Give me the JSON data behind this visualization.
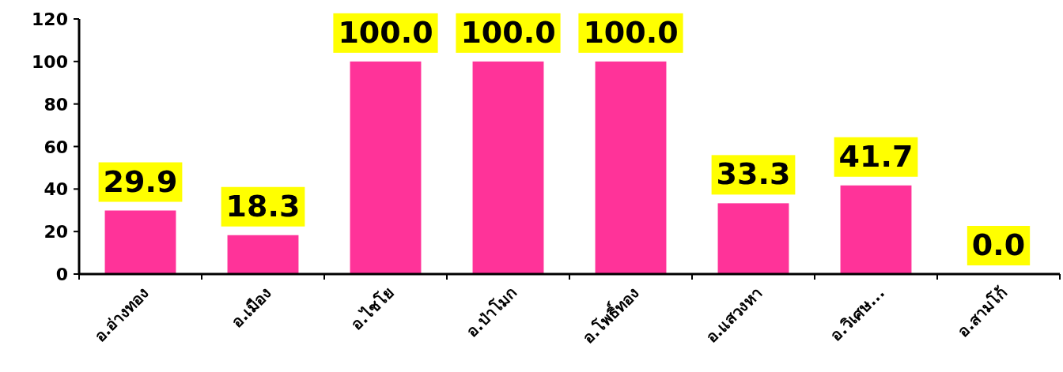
{
  "chart_data": {
    "type": "bar",
    "categories": [
      "อ.อ่างทอง",
      "อ.เมือง",
      "อ.ไชโย",
      "อ.ป่าโมก",
      "อ.โพธิ์ทอง",
      "อ.แสวงหา",
      "อ.วิเศษ...",
      "อ.สามโก้"
    ],
    "values": [
      29.9,
      18.3,
      100.0,
      100.0,
      100.0,
      33.3,
      41.7,
      0.0
    ],
    "color": "#ff3399",
    "ylim": [
      0,
      120
    ],
    "yticks": [
      0,
      20,
      40,
      60,
      80,
      100,
      120
    ],
    "value_labels": [
      "29.9",
      "18.3",
      "100.0",
      "100.0",
      "100.0",
      "33.3",
      "41.7",
      "0.0"
    ],
    "grid": false
  }
}
